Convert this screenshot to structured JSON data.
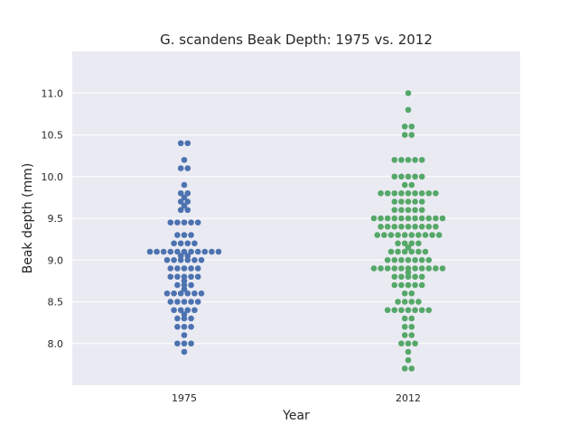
{
  "chart_data": {
    "type": "scatter",
    "subtype": "swarm",
    "title": "G. scandens Beak Depth: 1975 vs. 2012",
    "xlabel": "Year",
    "ylabel": "Beak depth (mm)",
    "categories": [
      "1975",
      "2012"
    ],
    "ylim": [
      7.5,
      11.5
    ],
    "yticks": [
      "8.0",
      "8.5",
      "9.0",
      "9.5",
      "10.0",
      "10.5",
      "11.0"
    ],
    "grid": true,
    "background": "#eaeaf2",
    "series": [
      {
        "category": "1975",
        "color": "#4c72b0",
        "values": [
          10.4,
          10.4,
          10.2,
          10.1,
          10.1,
          9.9,
          9.8,
          9.8,
          9.75,
          9.7,
          9.7,
          9.65,
          9.6,
          9.6,
          9.45,
          9.45,
          9.45,
          9.45,
          9.45,
          9.3,
          9.3,
          9.3,
          9.2,
          9.2,
          9.2,
          9.2,
          9.1,
          9.1,
          9.1,
          9.1,
          9.1,
          9.1,
          9.1,
          9.1,
          9.1,
          9.1,
          9.1,
          9.05,
          9.05,
          9.0,
          9.0,
          9.0,
          9.0,
          9.0,
          9.0,
          8.9,
          8.9,
          8.9,
          8.9,
          8.9,
          8.8,
          8.8,
          8.8,
          8.8,
          8.8,
          8.75,
          8.7,
          8.7,
          8.7,
          8.65,
          8.6,
          8.6,
          8.6,
          8.6,
          8.6,
          8.6,
          8.5,
          8.5,
          8.5,
          8.5,
          8.5,
          8.4,
          8.4,
          8.4,
          8.4,
          8.35,
          8.3,
          8.3,
          8.3,
          8.2,
          8.2,
          8.2,
          8.1,
          8.0,
          8.0,
          8.0,
          7.9
        ]
      },
      {
        "category": "2012",
        "color": "#55a868",
        "values": [
          11.0,
          10.8,
          10.6,
          10.6,
          10.5,
          10.5,
          10.2,
          10.2,
          10.2,
          10.2,
          10.2,
          10.0,
          10.0,
          10.0,
          10.0,
          10.0,
          9.9,
          9.9,
          9.8,
          9.8,
          9.8,
          9.8,
          9.8,
          9.8,
          9.8,
          9.8,
          9.8,
          9.7,
          9.7,
          9.7,
          9.7,
          9.7,
          9.6,
          9.6,
          9.6,
          9.6,
          9.6,
          9.5,
          9.5,
          9.5,
          9.5,
          9.5,
          9.5,
          9.5,
          9.5,
          9.5,
          9.5,
          9.5,
          9.4,
          9.4,
          9.4,
          9.4,
          9.4,
          9.4,
          9.4,
          9.4,
          9.4,
          9.3,
          9.3,
          9.3,
          9.3,
          9.3,
          9.3,
          9.3,
          9.3,
          9.3,
          9.3,
          9.2,
          9.2,
          9.2,
          9.2,
          9.15,
          9.1,
          9.1,
          9.1,
          9.1,
          9.1,
          9.1,
          9.0,
          9.0,
          9.0,
          9.0,
          9.0,
          9.0,
          9.0,
          8.9,
          8.9,
          8.9,
          8.9,
          8.9,
          8.9,
          8.9,
          8.9,
          8.9,
          8.9,
          8.9,
          8.85,
          8.8,
          8.8,
          8.8,
          8.8,
          8.8,
          8.7,
          8.7,
          8.7,
          8.7,
          8.7,
          8.6,
          8.6,
          8.5,
          8.5,
          8.5,
          8.5,
          8.4,
          8.4,
          8.4,
          8.4,
          8.4,
          8.4,
          8.4,
          8.3,
          8.3,
          8.2,
          8.2,
          8.1,
          8.1,
          8.0,
          8.0,
          8.0,
          7.9,
          7.8,
          7.7,
          7.7
        ]
      }
    ]
  }
}
